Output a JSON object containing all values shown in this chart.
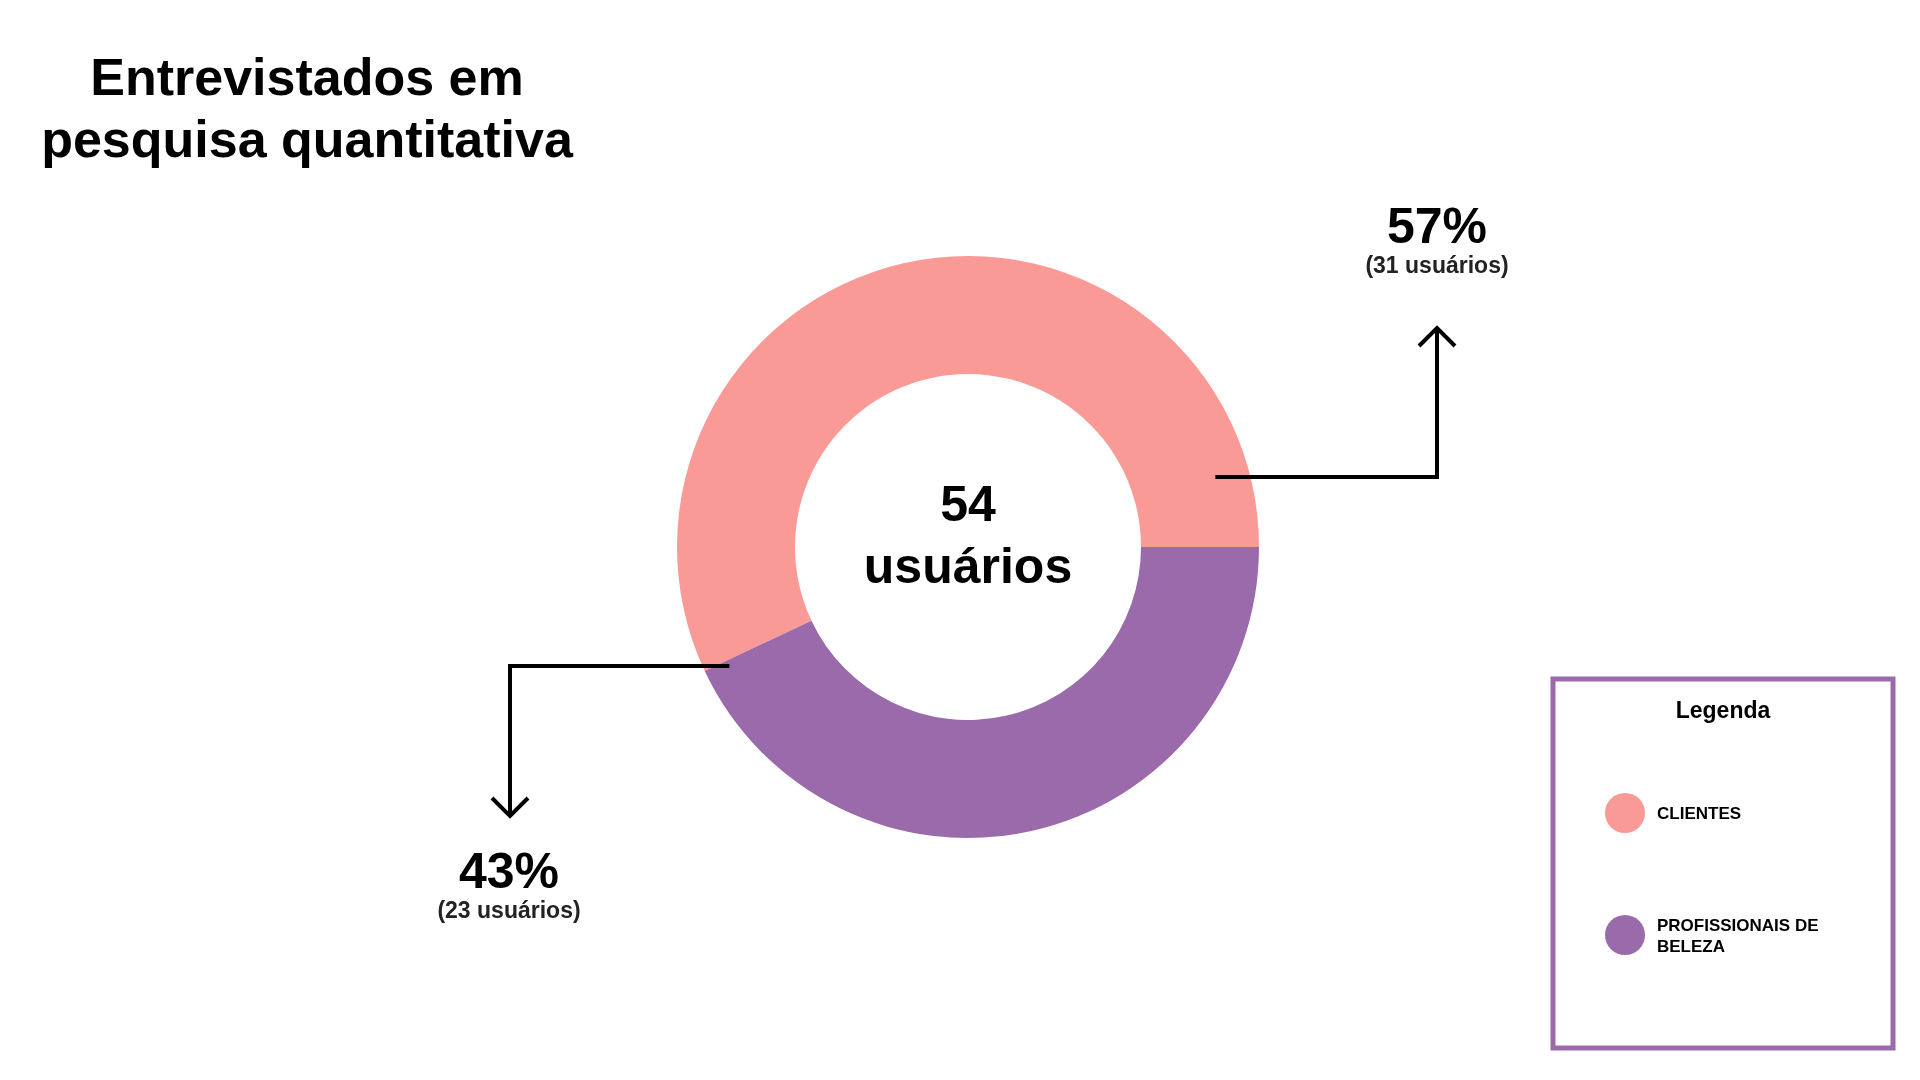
{
  "chart_data": {
    "type": "donut",
    "title": "Entrevistados em pesquisa quantitativa",
    "categories": [
      "CLIENTES",
      "PROFISSIONAIS DE BELEZA"
    ],
    "values": [
      57,
      43
    ],
    "colors": [
      "#f99a96",
      "#9a6aab"
    ],
    "value_labels": [
      "57%",
      "43%"
    ],
    "annotations": [
      "54 usuários",
      "(31 usuários)",
      "(23 usuários)"
    ],
    "legend": "bottom right",
    "legend_title": "Legenda"
  }
}
